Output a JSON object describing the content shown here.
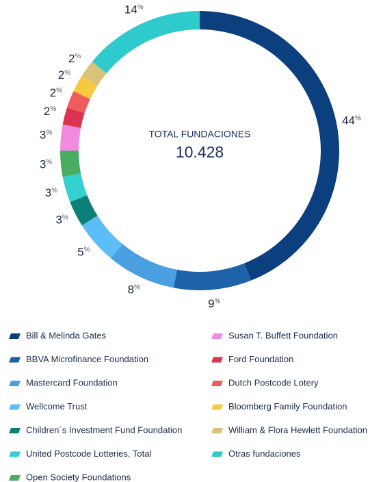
{
  "chart_data": {
    "type": "donut",
    "center_label": "TOTAL FUNDACIONES",
    "center_value": "10.428",
    "value_unit": "%",
    "categories": [
      "Bill & Melinda Gates",
      "BBVA Microfinance Foundation",
      "Mastercard Foundation",
      "Wellcome Trust",
      "Children´s Investment Fund Foundation",
      "United Postcode Lotteries, Total",
      "Open Society Foundations",
      "Susan T. Buffett Foundation",
      "Ford Foundation",
      "Dutch Postcode Lotery",
      "Bloomberg Family Foundation",
      "William & Flora Hewlett Foundation",
      "Otras fundaciones"
    ],
    "values": [
      44,
      9,
      8,
      5,
      3,
      3,
      3,
      3,
      2,
      2,
      2,
      2,
      14
    ],
    "colors": [
      "#0b3f7e",
      "#1e63aa",
      "#4a9fe0",
      "#5dbdf7",
      "#0b7f78",
      "#33cfd1",
      "#48ad60",
      "#f28be0",
      "#dc3350",
      "#f05c5c",
      "#f7c93e",
      "#d9c27a",
      "#2fcacc"
    ]
  }
}
